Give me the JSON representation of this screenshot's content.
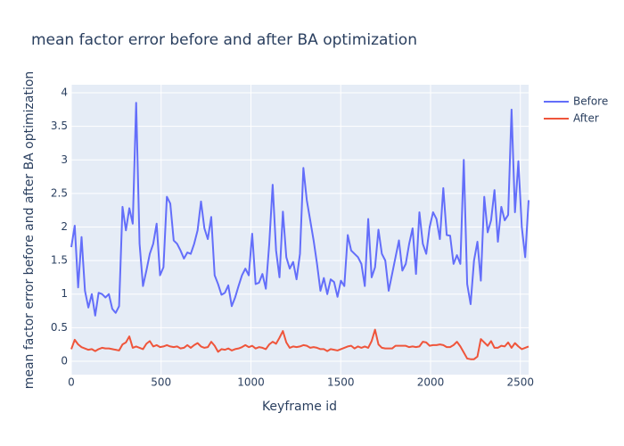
{
  "chart_data": {
    "type": "line",
    "title": "mean factor error before and after BA optimization",
    "x_label": "Keyframe id",
    "y_label": "mean factor error before and after BA optimization",
    "x": [
      0,
      19,
      38,
      57,
      76,
      95,
      114,
      133,
      152,
      171,
      190,
      209,
      228,
      247,
      266,
      285,
      304,
      323,
      342,
      361,
      380,
      399,
      418,
      437,
      456,
      475,
      494,
      513,
      532,
      551,
      570,
      589,
      608,
      627,
      646,
      665,
      684,
      703,
      722,
      741,
      760,
      779,
      798,
      817,
      836,
      855,
      874,
      893,
      912,
      931,
      950,
      969,
      988,
      1007,
      1026,
      1045,
      1064,
      1083,
      1102,
      1121,
      1140,
      1159,
      1178,
      1197,
      1216,
      1235,
      1254,
      1273,
      1292,
      1311,
      1330,
      1349,
      1368,
      1387,
      1406,
      1425,
      1444,
      1463,
      1482,
      1501,
      1520,
      1539,
      1558,
      1577,
      1596,
      1615,
      1634,
      1653,
      1672,
      1691,
      1710,
      1729,
      1748,
      1767,
      1786,
      1805,
      1824,
      1843,
      1862,
      1881,
      1900,
      1919,
      1938,
      1957,
      1976,
      1995,
      2014,
      2033,
      2052,
      2071,
      2090,
      2109,
      2128,
      2147,
      2166,
      2185,
      2204,
      2223,
      2242,
      2261,
      2280,
      2299,
      2318,
      2337,
      2356,
      2375,
      2394,
      2413,
      2432,
      2451,
      2470,
      2489,
      2508,
      2527,
      2546
    ],
    "series": [
      {
        "name": "Before",
        "color": "#636efa",
        "values": [
          1.7,
          2.02,
          1.1,
          1.85,
          1.05,
          0.8,
          1.0,
          0.68,
          1.02,
          1.0,
          0.95,
          1.0,
          0.78,
          0.72,
          0.82,
          2.3,
          1.95,
          2.28,
          2.05,
          3.85,
          1.75,
          1.12,
          1.35,
          1.6,
          1.75,
          2.05,
          1.28,
          1.4,
          2.45,
          2.35,
          1.8,
          1.75,
          1.65,
          1.53,
          1.62,
          1.6,
          1.75,
          1.95,
          2.38,
          1.98,
          1.82,
          2.15,
          1.28,
          1.15,
          0.99,
          1.02,
          1.13,
          0.82,
          0.95,
          1.12,
          1.28,
          1.38,
          1.28,
          1.9,
          1.15,
          1.17,
          1.3,
          1.08,
          1.75,
          2.63,
          1.65,
          1.25,
          2.23,
          1.55,
          1.38,
          1.48,
          1.22,
          1.6,
          2.88,
          2.4,
          2.1,
          1.8,
          1.45,
          1.05,
          1.24,
          1.0,
          1.22,
          1.18,
          0.96,
          1.2,
          1.12,
          1.88,
          1.65,
          1.6,
          1.55,
          1.45,
          1.12,
          2.12,
          1.25,
          1.4,
          1.96,
          1.6,
          1.5,
          1.05,
          1.3,
          1.55,
          1.8,
          1.35,
          1.45,
          1.75,
          1.98,
          1.3,
          2.22,
          1.75,
          1.6,
          2.0,
          2.22,
          2.12,
          1.82,
          2.58,
          1.88,
          1.87,
          1.45,
          1.58,
          1.45,
          3.0,
          1.15,
          0.85,
          1.5,
          1.78,
          1.2,
          2.45,
          1.92,
          2.1,
          2.55,
          1.78,
          2.3,
          2.1,
          2.18,
          3.75,
          2.22,
          2.98,
          2.0,
          1.55,
          2.4
        ]
      },
      {
        "name": "After",
        "color": "#ef553b",
        "values": [
          0.18,
          0.32,
          0.25,
          0.21,
          0.19,
          0.17,
          0.18,
          0.15,
          0.18,
          0.2,
          0.19,
          0.19,
          0.18,
          0.17,
          0.16,
          0.25,
          0.28,
          0.37,
          0.2,
          0.22,
          0.2,
          0.18,
          0.26,
          0.3,
          0.22,
          0.24,
          0.21,
          0.22,
          0.24,
          0.22,
          0.21,
          0.22,
          0.19,
          0.2,
          0.24,
          0.2,
          0.24,
          0.27,
          0.22,
          0.2,
          0.21,
          0.29,
          0.23,
          0.14,
          0.18,
          0.17,
          0.19,
          0.16,
          0.18,
          0.19,
          0.21,
          0.24,
          0.21,
          0.23,
          0.19,
          0.21,
          0.2,
          0.18,
          0.25,
          0.29,
          0.26,
          0.35,
          0.45,
          0.28,
          0.2,
          0.22,
          0.21,
          0.22,
          0.24,
          0.23,
          0.2,
          0.21,
          0.2,
          0.18,
          0.18,
          0.15,
          0.18,
          0.17,
          0.16,
          0.18,
          0.2,
          0.22,
          0.23,
          0.19,
          0.22,
          0.2,
          0.22,
          0.2,
          0.3,
          0.47,
          0.25,
          0.2,
          0.19,
          0.19,
          0.19,
          0.23,
          0.23,
          0.23,
          0.23,
          0.21,
          0.22,
          0.21,
          0.22,
          0.29,
          0.28,
          0.23,
          0.24,
          0.24,
          0.25,
          0.24,
          0.21,
          0.21,
          0.24,
          0.29,
          0.22,
          0.13,
          0.04,
          0.03,
          0.03,
          0.07,
          0.33,
          0.28,
          0.23,
          0.3,
          0.2,
          0.2,
          0.23,
          0.22,
          0.28,
          0.2,
          0.27,
          0.22,
          0.18,
          0.2,
          0.22
        ]
      }
    ],
    "xlim": [
      0,
      2546
    ],
    "ylim": [
      -0.2,
      4.12
    ],
    "xticks": [
      0,
      500,
      1000,
      1500,
      2000,
      2500
    ],
    "yticks": [
      0,
      0.5,
      1,
      1.5,
      2,
      2.5,
      3,
      3.5,
      4
    ],
    "grid": true
  }
}
